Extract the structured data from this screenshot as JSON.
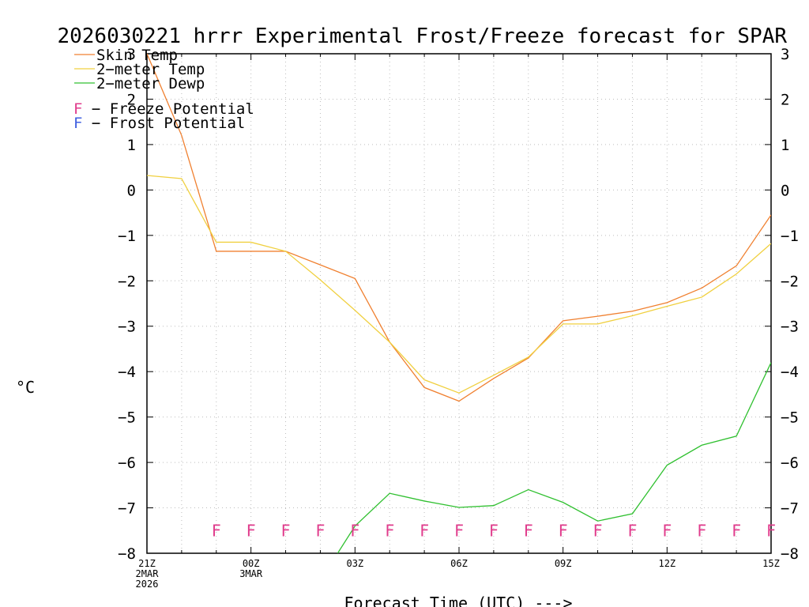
{
  "chart_data": {
    "type": "line",
    "title": "2026030221 hrrr Experimental Frost/Freeze forecast for SPAR",
    "xlabel": "Forecast Time (UTC) --->",
    "ylabel": "°C",
    "ylim": [
      -8,
      3
    ],
    "xlim": [
      0,
      18
    ],
    "yticks": [
      3,
      2,
      1,
      0,
      -1,
      -2,
      -3,
      -4,
      -5,
      -6,
      -7,
      -8
    ],
    "ytick_labels": [
      "3",
      "2",
      "1",
      "0",
      "−1",
      "−2",
      "−3",
      "−4",
      "−5",
      "−6",
      "−7",
      "−8"
    ],
    "xticks": [
      {
        "x": 0,
        "lines": [
          "21Z",
          "2MAR",
          "2026"
        ]
      },
      {
        "x": 3,
        "lines": [
          "00Z",
          "3MAR"
        ]
      },
      {
        "x": 6,
        "lines": [
          "03Z"
        ]
      },
      {
        "x": 9,
        "lines": [
          "06Z"
        ]
      },
      {
        "x": 12,
        "lines": [
          "09Z"
        ]
      },
      {
        "x": 15,
        "lines": [
          "12Z"
        ]
      },
      {
        "x": 18,
        "lines": [
          "15Z"
        ]
      }
    ],
    "grid": true,
    "legend": [
      {
        "name": "Skin Temp",
        "color": "#f08030"
      },
      {
        "name": "2−meter Temp",
        "color": "#f0d040"
      },
      {
        "name": "2−meter Dewp",
        "color": "#30c030"
      }
    ],
    "flag_legend": [
      {
        "letter": "F",
        "text": " − Freeze Potential",
        "color": "#e03c8c"
      },
      {
        "letter": "F",
        "text": " − Frost Potential",
        "color": "#4060e0"
      }
    ],
    "series": [
      {
        "name": "Skin Temp",
        "color": "#f08030",
        "x": [
          0,
          1,
          2,
          3,
          4,
          5,
          6,
          7,
          8,
          9,
          10,
          11,
          12,
          13,
          14,
          15,
          16,
          17,
          18
        ],
        "values": [
          3.0,
          1.2,
          -1.35,
          -1.35,
          -1.35,
          -1.65,
          -1.95,
          -3.35,
          -4.35,
          -4.65,
          -4.15,
          -3.7,
          -2.88,
          -2.78,
          -2.67,
          -2.48,
          -2.16,
          -1.67,
          -0.55
        ]
      },
      {
        "name": "2-meter Temp",
        "color": "#f0d040",
        "x": [
          0,
          1,
          2,
          3,
          4,
          5,
          6,
          7,
          8,
          9,
          10,
          11,
          12,
          13,
          14,
          15,
          16,
          17,
          18
        ],
        "values": [
          0.32,
          0.25,
          -1.15,
          -1.15,
          -1.35,
          -1.98,
          -2.65,
          -3.35,
          -4.18,
          -4.47,
          -4.08,
          -3.68,
          -2.95,
          -2.95,
          -2.77,
          -2.56,
          -2.36,
          -1.85,
          -1.18
        ]
      },
      {
        "name": "2-meter Dewp",
        "color": "#30c030",
        "x": [
          5.5,
          6,
          7,
          8,
          9,
          10,
          11,
          12,
          13,
          14,
          15,
          16,
          17,
          18
        ],
        "values": [
          -8.0,
          -7.4,
          -6.68,
          -6.85,
          -6.99,
          -6.95,
          -6.6,
          -6.88,
          -7.29,
          -7.13,
          -6.06,
          -5.62,
          -5.42,
          -3.8
        ]
      }
    ],
    "flags": {
      "letter": "F",
      "color": "#e03c8c",
      "y": -7.5,
      "x": [
        2,
        3,
        4,
        5,
        6,
        7,
        8,
        9,
        10,
        11,
        12,
        13,
        14,
        15,
        16,
        17,
        18
      ]
    }
  }
}
